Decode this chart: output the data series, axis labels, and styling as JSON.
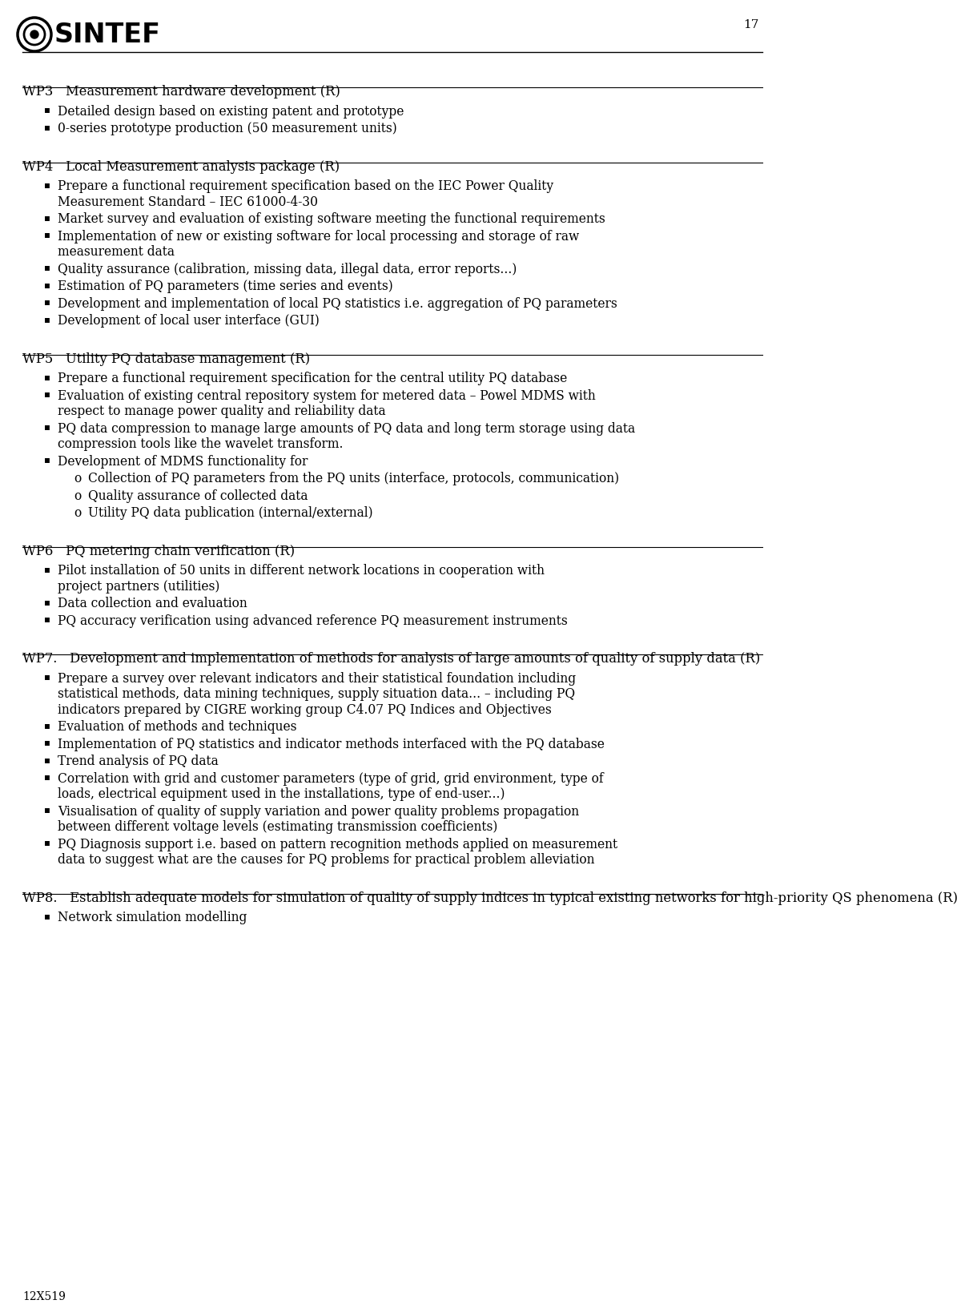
{
  "page_number": "17",
  "footer": "12X519",
  "logo_text": "SINTEF",
  "background_color": "#ffffff",
  "text_color": "#000000",
  "sections": [
    {
      "id": "WP3",
      "heading": "WP3   Measurement hardware development (R)",
      "bullets": [
        {
          "text": "Detailed design based on existing patent and prototype",
          "sub": false
        },
        {
          "text": "0-series prototype production (50 measurement units)",
          "sub": false
        }
      ]
    },
    {
      "id": "WP4",
      "heading": "WP4   Local Measurement analysis package (R)",
      "bullets": [
        {
          "text": "Prepare a functional requirement specification based on the IEC Power Quality Measurement Standard – IEC 61000-4-30",
          "sub": false
        },
        {
          "text": "Market survey and evaluation of existing software meeting the functional requirements",
          "sub": false
        },
        {
          "text": "Implementation of new or existing software for local processing and storage of raw measurement data",
          "sub": false
        },
        {
          "text": "Quality assurance (calibration, missing data, illegal data, error reports...)",
          "sub": false
        },
        {
          "text": "Estimation of PQ parameters (time series and events)",
          "sub": false
        },
        {
          "text": "Development and implementation of local PQ statistics i.e. aggregation of PQ parameters",
          "sub": false
        },
        {
          "text": "Development of local user interface (GUI)",
          "sub": false
        }
      ]
    },
    {
      "id": "WP5",
      "heading": "WP5   Utility PQ database management (R)",
      "bullets": [
        {
          "text": "Prepare a functional requirement specification for the central utility PQ database",
          "sub": false
        },
        {
          "text": "Evaluation of existing central repository system for metered data – Powel MDMS with respect to manage power quality and reliability data",
          "sub": false
        },
        {
          "text": "PQ data compression to manage large amounts of PQ data and long term storage using data compression tools like the wavelet transform.",
          "sub": false
        },
        {
          "text": "Development of MDMS functionality for",
          "sub": false
        },
        {
          "text": "Collection of PQ parameters from the PQ units (interface, protocols, communication)",
          "sub": true
        },
        {
          "text": "Quality assurance of collected data",
          "sub": true
        },
        {
          "text": "Utility PQ data publication (internal/external)",
          "sub": true
        }
      ]
    },
    {
      "id": "WP6",
      "heading": "WP6   PQ metering chain verification (R)",
      "bullets": [
        {
          "text": "Pilot installation of 50 units in different network locations in cooperation with project partners (utilities)",
          "sub": false
        },
        {
          "text": "Data collection and evaluation",
          "sub": false
        },
        {
          "text": "PQ accuracy verification using advanced reference PQ measurement instruments",
          "sub": false
        }
      ]
    },
    {
      "id": "WP7",
      "heading": "WP7.   Development and implementation of methods for analysis of large amounts of quality of supply data (R)",
      "bullets": [
        {
          "text": "Prepare a survey over relevant indicators and their statistical foundation including statistical methods, data mining techniques, supply situation data... – including PQ indicators prepared by CIGRE working group C4.07 PQ Indices and Objectives",
          "sub": false
        },
        {
          "text": "Evaluation of methods and techniques",
          "sub": false
        },
        {
          "text": "Implementation of PQ statistics and indicator methods interfaced with the PQ database",
          "sub": false
        },
        {
          "text": "Trend analysis of PQ data",
          "sub": false
        },
        {
          "text": "Correlation with grid and customer parameters (type of grid, grid environment, type of loads, electrical equipment used in the installations, type of end-user...)",
          "sub": false
        },
        {
          "text": "Visualisation of quality of supply variation and power quality  problems propagation between different voltage levels (estimating transmission coefficients)",
          "sub": false
        },
        {
          "text": "PQ Diagnosis support i.e. based on pattern recognition methods applied on measurement data to suggest what are the causes for PQ problems for practical problem alleviation",
          "sub": false
        }
      ]
    },
    {
      "id": "WP8",
      "heading": "WP8.   Establish adequate models for simulation of quality of supply indices in typical existing networks for high-priority QS phenomena (R)",
      "bullets": [
        {
          "text": "Network simulation modelling",
          "sub": false
        }
      ]
    }
  ]
}
